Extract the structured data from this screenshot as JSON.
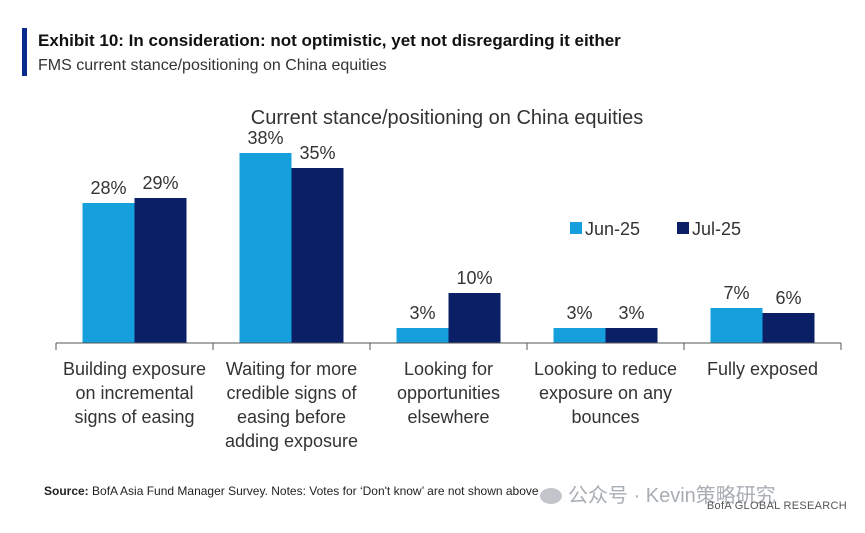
{
  "header": {
    "title": "Exhibit 10: In consideration: not optimistic, yet not disregarding it either",
    "subtitle": "FMS current stance/positioning on China equities"
  },
  "colors": {
    "accent": "#0a2a8c",
    "jun": "#159fdc",
    "jul": "#0b1f66",
    "axis": "#555555"
  },
  "chart_data": {
    "type": "bar",
    "title": "Current stance/positioning on China equities",
    "categories": [
      [
        "Building exposure",
        "on incremental",
        "signs of easing"
      ],
      [
        "Waiting for more",
        "credible signs of",
        "easing before",
        "adding exposure"
      ],
      [
        "Looking for",
        "opportunities",
        "elsewhere"
      ],
      [
        "Looking to reduce",
        "exposure on any",
        "bounces"
      ],
      [
        "Fully exposed"
      ]
    ],
    "series": [
      {
        "name": "Jun-25",
        "values": [
          28,
          38,
          3,
          3,
          7
        ],
        "labels": [
          "28%",
          "38%",
          "3%",
          "3%",
          "7%"
        ]
      },
      {
        "name": "Jul-25",
        "values": [
          29,
          35,
          10,
          3,
          6
        ],
        "labels": [
          "29%",
          "35%",
          "10%",
          "3%",
          "6%"
        ]
      }
    ],
    "ylim": [
      0,
      40
    ],
    "legend": "top-right",
    "grid": false
  },
  "footer": {
    "source_label": "Source:",
    "source_text": " BofA Asia Fund Manager Survey. Notes: Votes for ‘Don't know’ are not shown above",
    "watermark": "公众号 · Kevin策略研究",
    "brand": "BofA GLOBAL RESEARCH"
  }
}
